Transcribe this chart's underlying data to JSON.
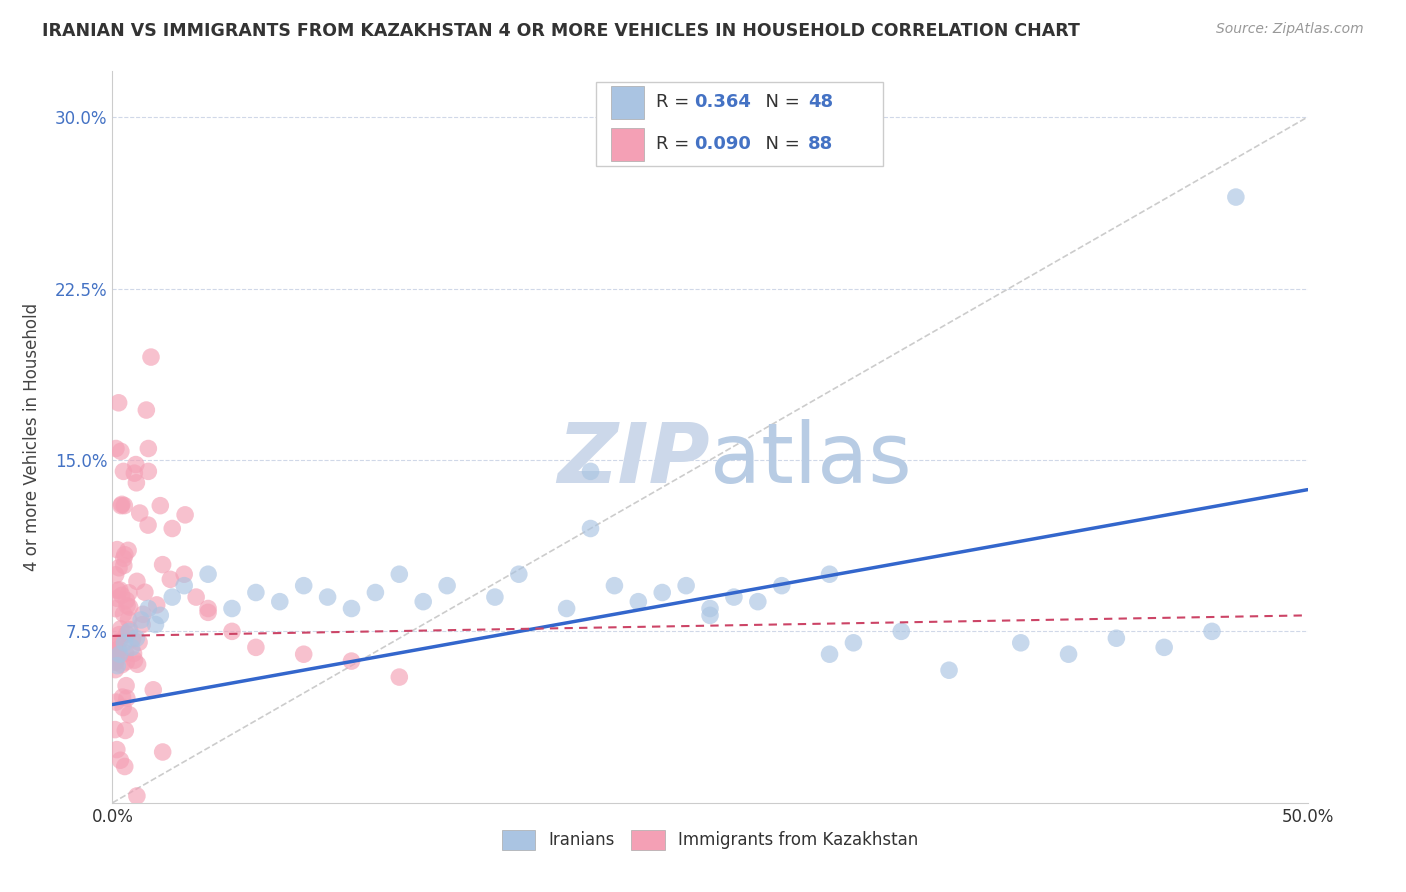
{
  "title": "IRANIAN VS IMMIGRANTS FROM KAZAKHSTAN 4 OR MORE VEHICLES IN HOUSEHOLD CORRELATION CHART",
  "source_text": "Source: ZipAtlas.com",
  "ylabel": "4 or more Vehicles in Household",
  "xmin": 0.0,
  "xmax": 0.5,
  "ymin": 0.0,
  "ymax": 0.32,
  "xtick_positions": [
    0.0,
    0.5
  ],
  "xtick_labels": [
    "0.0%",
    "50.0%"
  ],
  "ytick_positions": [
    0.075,
    0.15,
    0.225,
    0.3
  ],
  "ytick_labels": [
    "7.5%",
    "15.0%",
    "22.5%",
    "30.0%"
  ],
  "blue_R": 0.364,
  "blue_N": 48,
  "pink_R": 0.09,
  "pink_N": 88,
  "legend_label_blue": "Iranians",
  "legend_label_pink": "Immigrants from Kazakhstan",
  "dot_color_blue": "#aac4e2",
  "dot_color_pink": "#f4a0b5",
  "line_color_blue": "#3366cc",
  "line_color_pink": "#cc4466",
  "ref_line_color": "#cccccc",
  "watermark_color": "#ccd8ea",
  "background_color": "#ffffff",
  "grid_color": "#d0d8e8",
  "title_color": "#333333",
  "source_color": "#999999",
  "ytick_color": "#4472c4",
  "xtick_color": "#333333",
  "legend_text_color": "#333333",
  "legend_value_color": "#4472c4",
  "blue_line_start_y": 0.043,
  "blue_line_end_y": 0.137,
  "pink_line_start_y": 0.073,
  "pink_line_end_y": 0.082
}
